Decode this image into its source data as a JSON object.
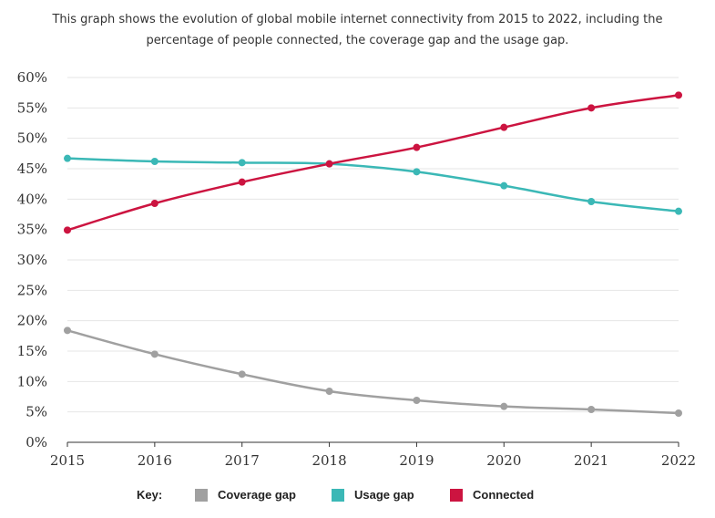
{
  "caption": {
    "line1": "This graph shows the evolution of global mobile internet connectivity from 2015 to 2022, including the",
    "line2": "percentage of people connected, the coverage gap and the usage gap."
  },
  "legend": {
    "key_label": "Key:"
  },
  "colors": {
    "coverage_gap": "#a0a0a0",
    "usage_gap": "#3bb8b6",
    "connected": "#cc1440",
    "grid": "#e6e6e6",
    "axis": "#333333"
  },
  "chart_data": {
    "type": "line",
    "x": [
      "2015",
      "2016",
      "2017",
      "2018",
      "2019",
      "2020",
      "2021",
      "2022"
    ],
    "y_ticks": [
      "0%",
      "5%",
      "10%",
      "15%",
      "20%",
      "25%",
      "30%",
      "35%",
      "40%",
      "45%",
      "50%",
      "55%",
      "60%"
    ],
    "ylim": [
      0,
      60
    ],
    "grid": true,
    "legend_position": "bottom",
    "series": [
      {
        "name": "Coverage gap",
        "color": "#a0a0a0",
        "values": [
          18.4,
          14.5,
          11.2,
          8.4,
          6.9,
          5.9,
          5.4,
          4.8
        ]
      },
      {
        "name": "Usage gap",
        "color": "#3bb8b6",
        "values": [
          46.7,
          46.2,
          46.0,
          45.8,
          44.5,
          42.2,
          39.6,
          38.0
        ]
      },
      {
        "name": "Connected",
        "color": "#cc1440",
        "values": [
          34.9,
          39.3,
          42.8,
          45.8,
          48.5,
          51.8,
          55.0,
          57.1
        ]
      }
    ]
  }
}
